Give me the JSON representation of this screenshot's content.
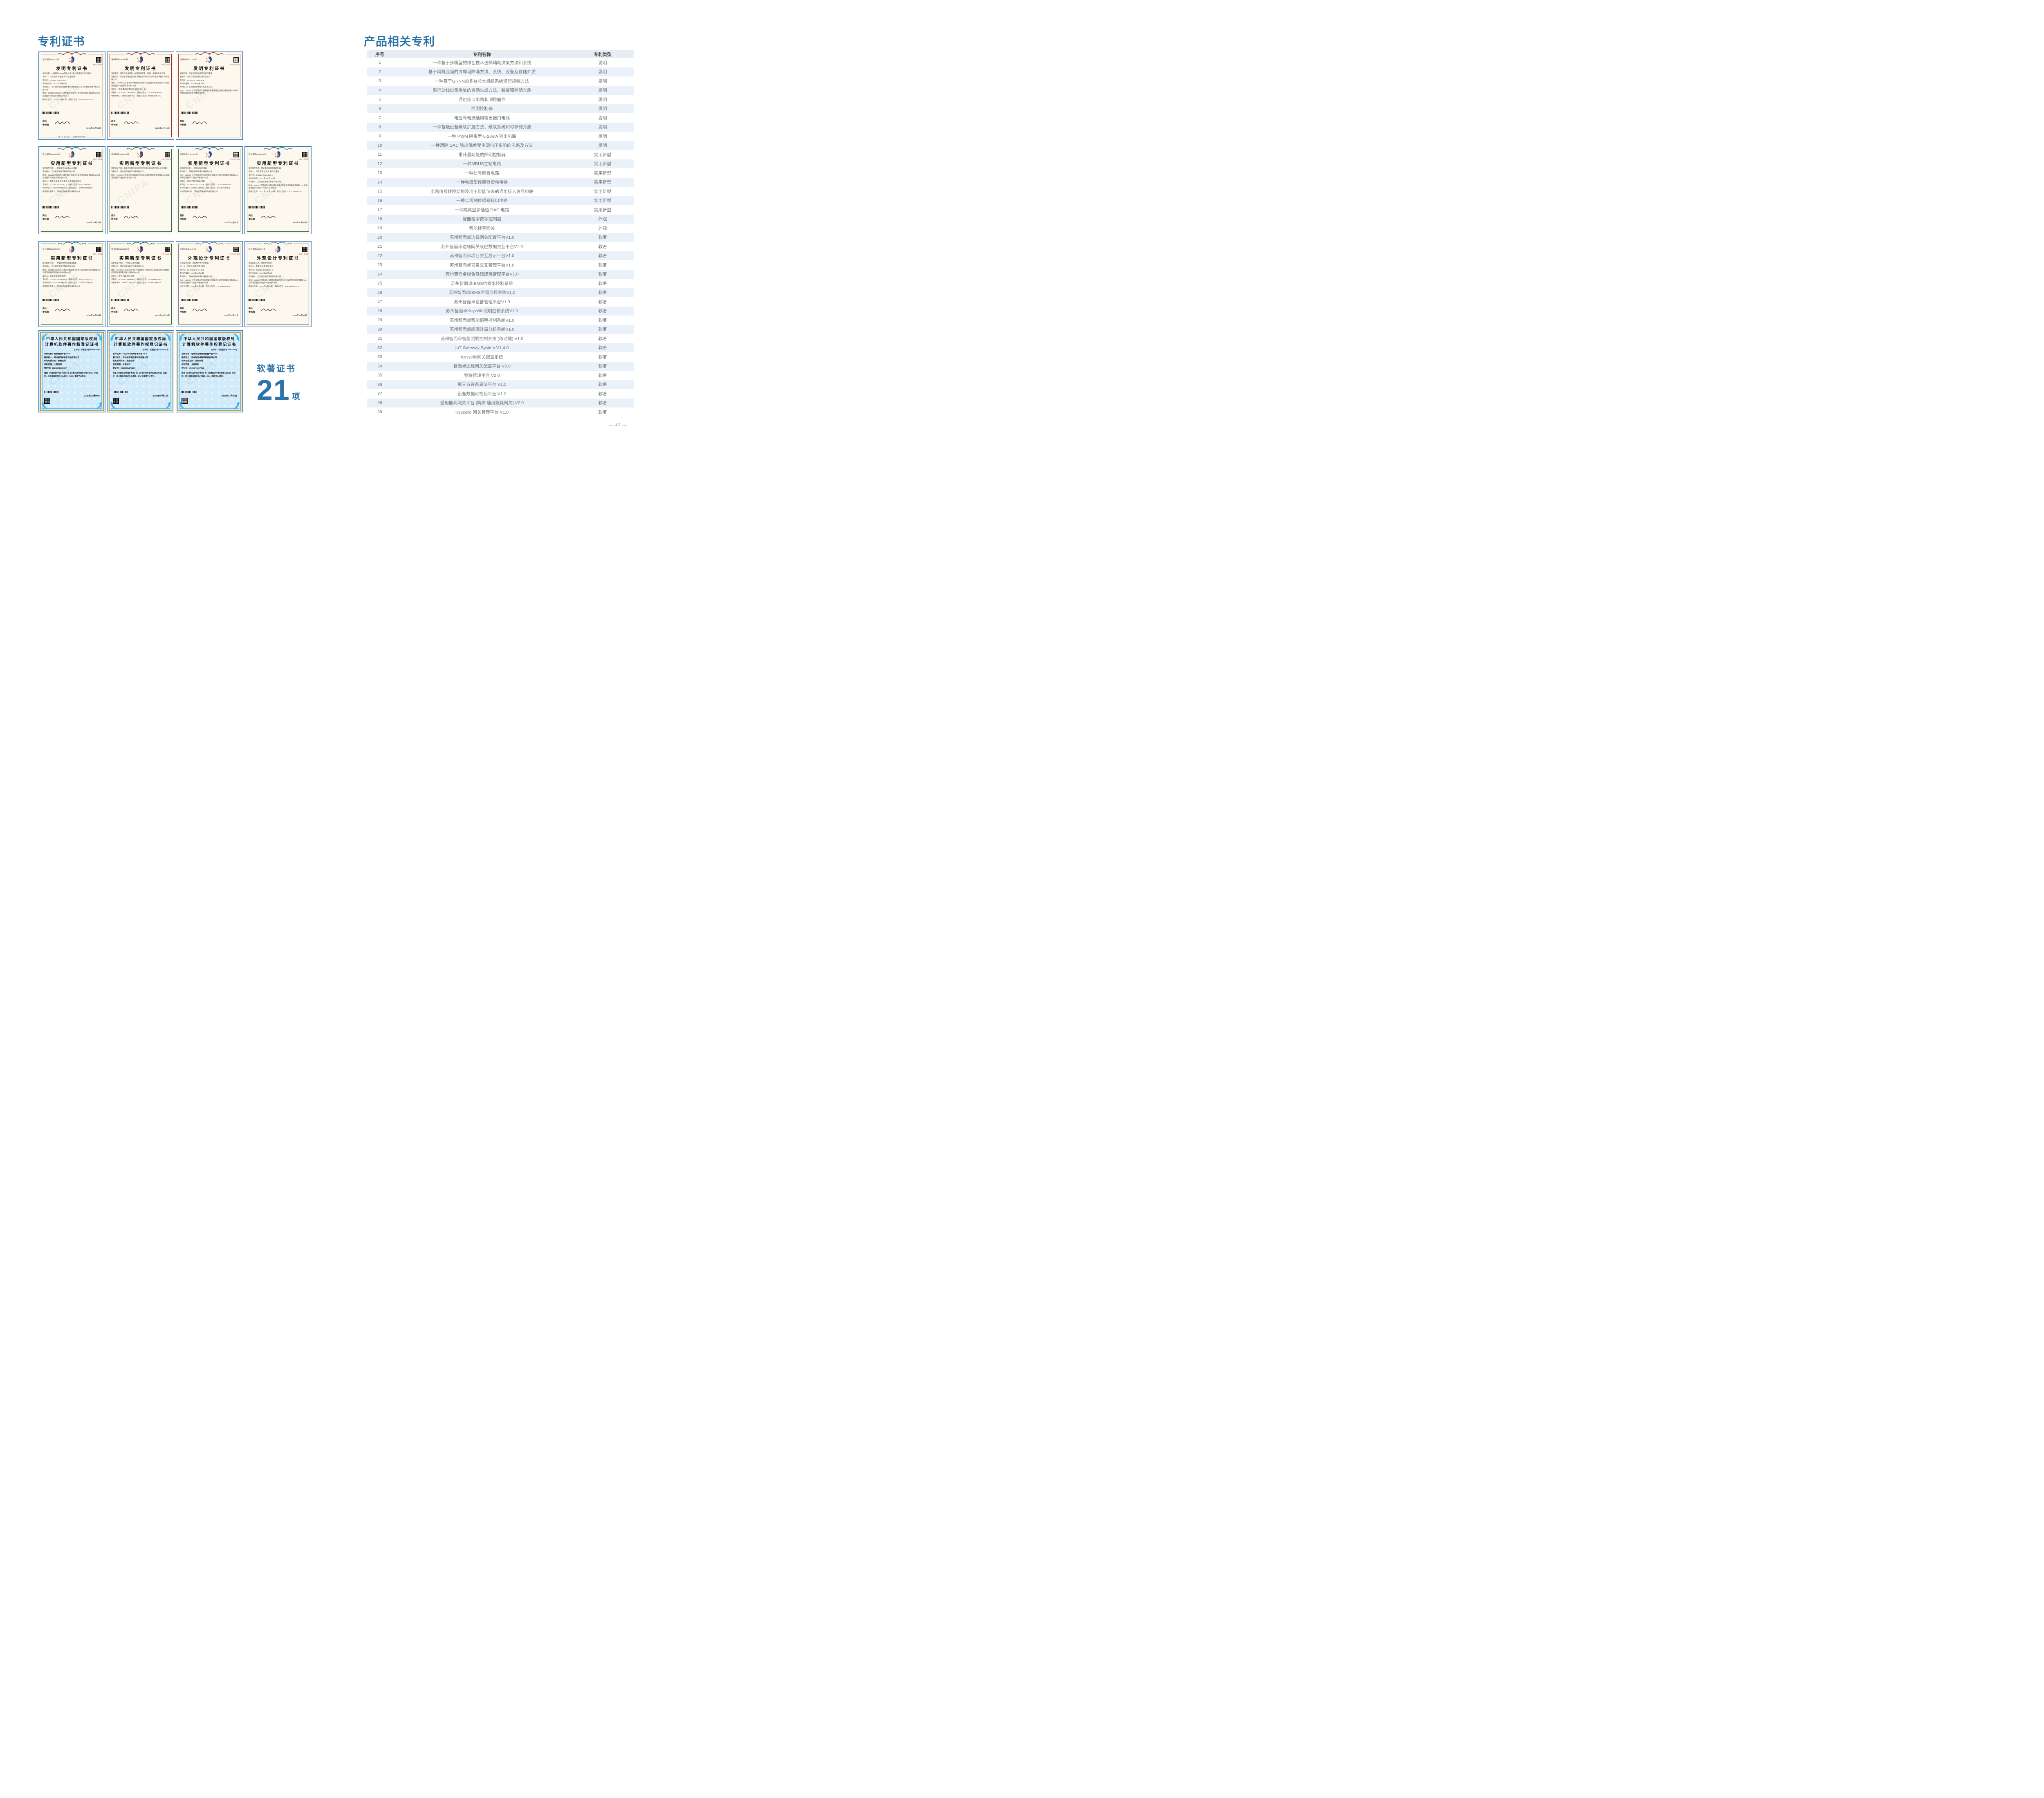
{
  "left": {
    "heading": "专利证书",
    "soft_label": "软著证书",
    "soft_count": "21",
    "soft_unit": "项"
  },
  "right": {
    "heading": "产品相关专利",
    "table": {
      "headers": [
        "序号",
        "专利名称",
        "专利类型"
      ],
      "rows": [
        {
          "no": "1",
          "name": "一种基于多模型的绿色技术选择辅助决策方法和系统",
          "type": "发明"
        },
        {
          "no": "2",
          "name": "基于风机变频的冷却塔降噪方法、系统、设备及存储介质",
          "type": "发明"
        },
        {
          "no": "3",
          "name": "一种基于GRNN的多台冷水机组系统运行控制方法",
          "type": "发明"
        },
        {
          "no": "4",
          "name": "串行总线设备地址的自动生成方法、装置和存储介质",
          "type": "发明"
        },
        {
          "no": "5",
          "name": "通用接口电路和测控器件",
          "type": "发明"
        },
        {
          "no": "6",
          "name": "照明控制器",
          "type": "发明"
        },
        {
          "no": "7",
          "name": "电压与电流通用输出接口电路",
          "type": "发明"
        },
        {
          "no": "8",
          "name": "一种智能设备级联扩展方法、级联系统和可存储介质",
          "type": "发明"
        },
        {
          "no": "9",
          "name": "一种 PWM 隔离型 0-20mA 输出电路",
          "type": "发明"
        },
        {
          "no": "10",
          "name": "一种消除 DAC 输出偏差受电源电压影响的电路及方法",
          "type": "发明"
        },
        {
          "no": "11",
          "name": "带计量功能的照明控制器",
          "type": "实用新型"
        },
        {
          "no": "12",
          "name": "一种MBUS主站电路",
          "type": "实用新型"
        },
        {
          "no": "13",
          "name": "一种信号解析电路",
          "type": "实用新型"
        },
        {
          "no": "14",
          "name": "一种电流型传感器授电电路",
          "type": "实用新型"
        },
        {
          "no": "15",
          "name": "电路信号转换结构及用于智能仪表的通用接入信号电路",
          "type": "实用新型"
        },
        {
          "no": "16",
          "name": "一种二线制传感器接口电路",
          "type": "实用新型"
        },
        {
          "no": "17",
          "name": "一种隔离型多通道 DAC 电路",
          "type": "实用新型"
        },
        {
          "no": "18",
          "name": "智能楼宇数字控制器",
          "type": "外观"
        },
        {
          "no": "19",
          "name": "智能楼宇网关",
          "type": "外观"
        },
        {
          "no": "20",
          "name": "苏州智而卓边缘网关配置平台V1.0",
          "type": "软著"
        },
        {
          "no": "21",
          "name": "苏州智而卓边缘网关底层数据交互平台V1.0",
          "type": "软著"
        },
        {
          "no": "22",
          "name": "苏州智而卓项目交互展示平台V1.0",
          "type": "软著"
        },
        {
          "no": "23",
          "name": "苏州智而卓项目交互管理平台V1.0",
          "type": "软著"
        },
        {
          "no": "24",
          "name": "苏州智而卓绿色低碳建筑管理平台V1.0",
          "type": "软著"
        },
        {
          "no": "25",
          "name": "苏州智而卓IBMS给排水控制系统",
          "type": "软著"
        },
        {
          "no": "26",
          "name": "苏州智而卓IBMS空调自控系统V1.0",
          "type": "软著"
        },
        {
          "no": "27",
          "name": "苏州智而卓设备管理平台V1.0",
          "type": "软著"
        },
        {
          "no": "28",
          "name": "苏州智而卓Keyzelle照明控制系统V1.0",
          "type": "软著"
        },
        {
          "no": "29",
          "name": "苏州智而卓智能照明控制系统V1.0",
          "type": "软著"
        },
        {
          "no": "30",
          "name": "苏州智而卓能源计量分析系统V1.0",
          "type": "软著"
        },
        {
          "no": "31",
          "name": "苏州智而卓智能照明控制系统 (移动端) V1.0",
          "type": "软著"
        },
        {
          "no": "32",
          "name": "IoT Gateway System V1.4.0",
          "type": "软著"
        },
        {
          "no": "33",
          "name": "Keyzelle网关配置系统",
          "type": "软著"
        },
        {
          "no": "34",
          "name": "智而卓边缘网关配置平台 V2.0",
          "type": "软著"
        },
        {
          "no": "35",
          "name": "物联管理平台 V2.0",
          "type": "软著"
        },
        {
          "no": "36",
          "name": "第三方设备算法平台 V1.0",
          "type": "软著"
        },
        {
          "no": "37",
          "name": "设备数据可视化平台 V1.0",
          "type": "软著"
        },
        {
          "no": "38",
          "name": "通用能耗网关平台 [简称:通用能耗网关] V2.0",
          "type": "软著"
        },
        {
          "no": "39",
          "name": "Keyzelle 网关管理平台 V1.0",
          "type": "软著"
        }
      ]
    }
  },
  "cert_common": {
    "qr_caption": "专利公告信息",
    "sig_role": "局长",
    "sig_name": "申长雨"
  },
  "certificates": {
    "rows": [
      {
        "cards": [
          {
            "kind": "patent",
            "theme": "red",
            "title": "发明专利证书",
            "cert_no": "证书号第6661534号",
            "lines": [
              "发明名称：一种基于GRNN的多台冷水机组系统运行控制方法",
              "发明人：马杰;袁琦;李国建;孙日近;董红林",
              "专利号：ZL 2022 1 0427340.7",
              "专利申请日：2022年04月22日",
              "专利权人：苏州思萃融合基建技术研究所有限公司 苏州智而卓数字科技有限公司",
              "地址：215000 江苏省苏州市相城经济技术开发区澄阳街道澄阳路116号阳澄湖国际科创园3号楼4层408室",
              "授权公告日：2024年01月30日　授权公告号：CN 114636212 B"
            ],
            "date": "2024年01月30日",
            "footer": "第 1 页 (共 2 页)　·　其他事项参见续页"
          },
          {
            "kind": "patent",
            "theme": "red",
            "title": "发明专利证书",
            "cert_no": "证书号第8000883号",
            "lines": [
              "发明名称：基于风机变频的冷却塔降噪方法、系统、设备及存储介质",
              "专利权人：苏州思萃融合基建技术研究所有限公司 苏州智而卓数字科技有限公司",
              "地址：215000 江苏省苏州市相城经济技术开发区澄阳街道澄阳路116号阳澄湖国际科创园3号楼4层408室",
              "发明人：马杰;董红林;李国建;沐俊华;彭土通",
              "专利号：ZL 2022 1 0427336.0　授权公告号：CN 114754603 B",
              "专利申请日：2022年04月22日　授权公告日：2025年06月13日"
            ],
            "date": "2025年06月13日"
          },
          {
            "kind": "patent",
            "theme": "red",
            "title": "发明专利证书",
            "cert_no": "证书号第6817761号",
            "lines": [
              "发明名称：电压与电流通用输出接口电路",
              "发明人：马杰;李建池;黄亮;刘炜;吴志祥",
              "专利号：ZL 2022 1 1004495.6",
              "专利申请日：2022年08月22日",
              "专利权人：苏州智而卓数字科技有限公司",
              "地址：215000 江苏省苏州市相城经济技术开发区澄阳街道澄阳路116号阳澄湖国际科创园3号楼4层402室"
            ],
            "date": ""
          }
        ]
      },
      {
        "cards": [
          {
            "kind": "patent",
            "theme": "green",
            "title": "实用新型专利证书",
            "cert_no": "证书号第22926608号",
            "lines": [
              "实用新型名称：一种隔离型多通道DAC电路",
              "专利权人：苏州智而卓数字科技有限公司",
              "地址：215131 江苏省苏州市相城经济技术开发区澄阳街道澄阳路116号阳澄湖国际科创园3号楼4层402室",
              "发明人：李建池;高波;刘炜;黄亮;王磊;陈鹏;吴志祥",
              "专利号：ZL 2024 2 1724792.2　授权公告号：CN 22940799 U",
              "专利申请日：2024年07月19日　授权公告日：2025年06月03日",
              "申请日时申请人：苏州智而卓数字科技有限公司"
            ],
            "date": "2025年06月03日"
          },
          {
            "kind": "patent",
            "theme": "green",
            "title": "实用新型专利证书",
            "cert_no": "证书号第20686096号",
            "lines": [
              "实用新型名称：电路信号转换结构及用于智能仪表的通用接入信号电路",
              "专利权人：苏州智而卓数字科技有限公司",
              "地址：215000 江苏省苏州市相城经济技术开发区澄阳街道澄阳路116号阳澄湖国际科创园3号楼4层402室"
            ],
            "date": ""
          },
          {
            "kind": "patent",
            "theme": "green",
            "title": "实用新型专利证书",
            "cert_no": "证书号第21287047号",
            "lines": [
              "实用新型名称：一种信号解析电路",
              "专利权人：苏州智而卓数字科技有限公司",
              "地址：215000 江苏省苏州市苏州相城经济技术开发区澄阳街道澄阳路116号阳澄湖国际科创园3号楼4层402室",
              "发明人：黄亮;王磊;李康裕;马晨",
              "专利号：ZL 2023 2 3317152.8　授权公告号：CN 221305920 U",
              "专利申请日：2023年12月06日　授权公告日：2024年07月09日",
              "申请日时申请人：苏州智而卓数字科技有限公司"
            ],
            "date": "2024年07月09日"
          },
          {
            "kind": "patent",
            "theme": "green",
            "title": "实用新型专利证书",
            "cert_no": "证书号第17856548号",
            "lines": [
              "实用新型名称：带计量功能的照明控制器",
              "发明人：马杰;李建池;刘炜;黄亮;吴志祥",
              "专利号：ZL 2022 2 1614220.X",
              "专利申请日：2022 年 06 月 27 日",
              "专利权人：苏州智而卓数字科技有限公司",
              "地址：215000 江苏省苏州市相城经济技术开发区澄阳街道澄阳路 116 号阳澄湖国际科创园 3 号楼 4 层 402 室",
              "授权公告日：2022 年 11 月 22 日　授权公告号：CN 217883912 U"
            ],
            "date": "2022年11月22日"
          }
        ]
      },
      {
        "cards": [
          {
            "kind": "patent",
            "theme": "green",
            "title": "实用新型专利证书",
            "cert_no": "证书号第21815578号",
            "lines": [
              "实用新型名称：一种电流型传感器授电电路",
              "专利权人：苏州智而卓数字科技有限公司",
              "地址：215000 江苏省苏州市苏州相城经济技术开发区澄阳街道澄阳路116号阳澄湖国际科创园3号楼4层402室",
              "发明人：王磊;黄亮;李昕;陈利",
              "专利号：ZL 2023 2 3316358.9　授权公告号：CN 221842442 U",
              "专利申请日：2023年12月06日　授权公告日：2024年10月15日",
              "申请日时申请人：苏州智而卓数字科技有限公司"
            ],
            "date": "2024年10月15日"
          },
          {
            "kind": "patent",
            "theme": "green",
            "title": "实用新型专利证书",
            "cert_no": "证书号第21626558号",
            "lines": [
              "实用新型名称：一种MBUS主站电路",
              "专利权人：苏州智而卓数字科技有限公司",
              "地址：215000 江苏省苏州市苏州相城经济技术开发区澄阳街道澄阳路116号阳澄湖国际科创园3号楼4层402室",
              "发明人：黄亮;王磊;陈利;刘炜",
              "专利号：ZL 2023 2 3618840.8　授权公告号：CN 221652605 U",
              "专利申请日：2023年12月28日　授权公告日：2024年09月03日"
            ],
            "date": "2024年09月03日"
          },
          {
            "kind": "patent",
            "theme": "slate",
            "title": "外观设计专利证书",
            "cert_no": "证书号第8604075号",
            "lines": [
              "外观设计名称：智能楼宇数字控制器",
              "设计人：李建池;马晨;李昕;刘炜",
              "专利号：ZL 2023 3 0715492.2",
              "专利申请日：2023年11月02日",
              "专利权人：苏州智而卓数字科技有限公司",
              "地址：215000 江苏省苏州市苏州相城经济技术开发区澄阳街道澄阳路116号阳澄湖国际科创园3号楼4层402室",
              "授权公告日：2024年04月16日　授权公告号：CN 308583638 S"
            ],
            "date": "2024年04月16日"
          },
          {
            "kind": "patent",
            "theme": "slate",
            "title": "外观设计专利证书",
            "cert_no": "证书号第8605671号",
            "lines": [
              "外观设计名称：智能楼宇网关",
              "设计人：李建池;马晨;李昕;刘炜",
              "专利号：ZL 2023 3 0715494.1",
              "专利申请日：2023年11月02日",
              "专利权人：苏州智而卓数字科技有限公司",
              "地址：215000 江苏省苏州市苏州相城经济技术开发区澄阳街道澄阳路116号阳澄湖国际科创园3号楼4层402室",
              "授权公告日：2024年04月16日　授权公告号：CN 308585443 S"
            ],
            "date": "2024年04月16日"
          }
        ]
      },
      {
        "cards": [
          {
            "kind": "software",
            "theme": "blue",
            "header1": "中华人民共和国国家版权局",
            "header2": "计算机软件著作权登记证书",
            "cert_no": "证书号：软著登字第15365015号",
            "lines": [
              "软件名称：物联管理平台 V2.0",
              "著作权人：苏州智而卓数字科技有限公司",
              "权利取得方式：原始取得",
              "权利范围：全部权利",
              "登记号：2025SR1208817"
            ],
            "statement": "根据《计算机软件保护条例》和《计算机软件著作权登记办法》的规定，经中国版权保护中心审核，对以上事项予以登记。",
            "date": "2025年07月09日"
          },
          {
            "kind": "software",
            "theme": "blue",
            "header1": "中华人民共和国国家版权局",
            "header2": "计算机软件著作权登记证书",
            "cert_no": "证书号：软著登字第15835675号",
            "lines": [
              "软件名称：Keyzelle网关管理平台 V1.0",
              "著作权人：苏州智而卓数字科技有限公司",
              "权利取得方式：原始取得",
              "权利范围：全部权利",
              "登记号：2025SR1179477"
            ],
            "statement": "根据《计算机软件保护条例》和《计算机软件著作权登记办法》的规定，经中国版权保护中心审核，对以上事项予以登记。",
            "date": "2025年07月07日"
          },
          {
            "kind": "software",
            "theme": "blue",
            "header1": "中华人民共和国国家版权局",
            "header2": "计算机软件著作权登记证书",
            "cert_no": "证书号：软著登字第15863449号",
            "lines": [
              "软件名称：智而卓边缘网关配置平台 V2.0",
              "著作权人：苏州智而卓数字科技有限公司",
              "权利取得方式：原始取得",
              "权利范围：全部权利",
              "登记号：2025SR1207251"
            ],
            "statement": "根据《计算机软件保护条例》和《计算机软件著作权登记办法》的规定，经中国版权保护中心审核，对以上事项予以登记。",
            "date": "2025年07月09日"
          }
        ]
      }
    ]
  },
  "page": {
    "number": "— 43 —"
  }
}
